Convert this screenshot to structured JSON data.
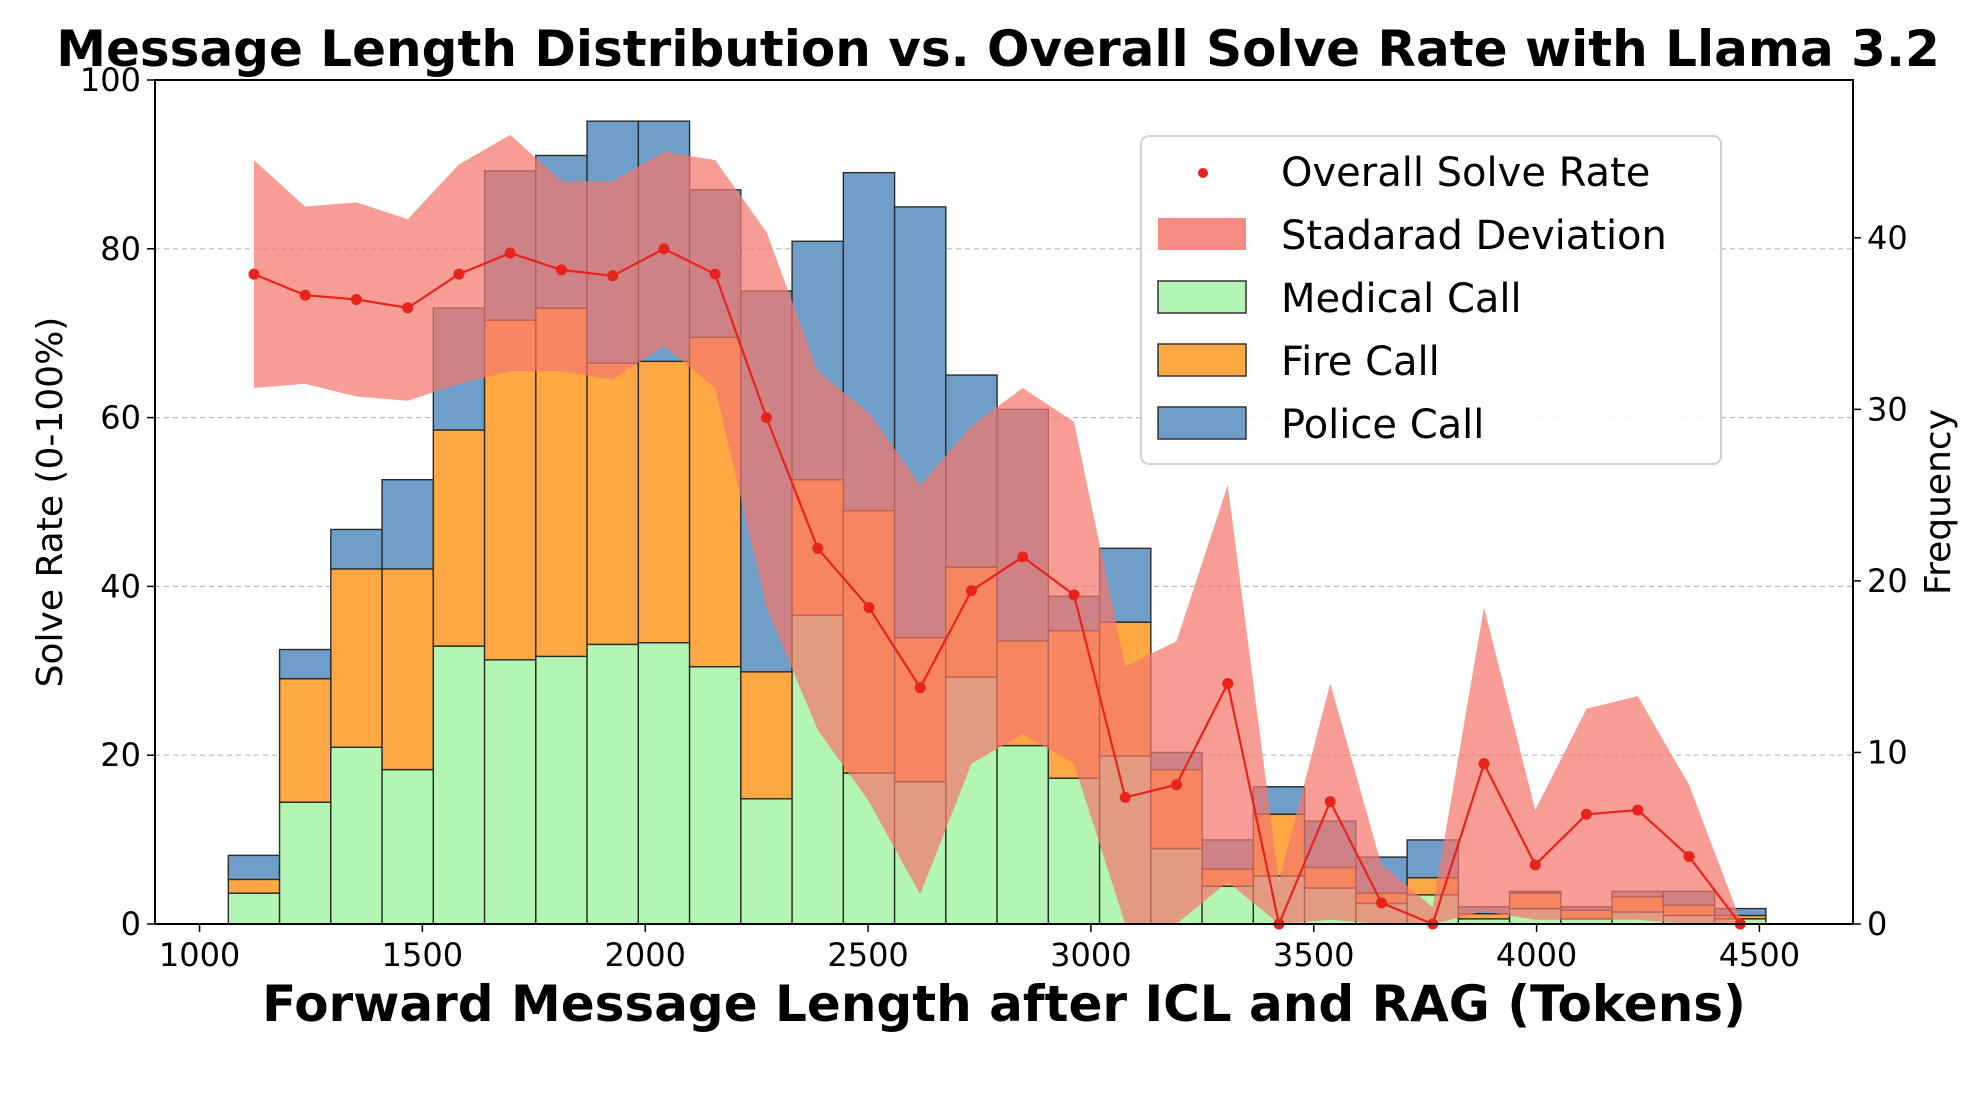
{
  "chart_data": {
    "type": "bar",
    "title": "Message Length Distribution vs. Overall Solve Rate with Llama 3.2",
    "xlabel": "Forward Message Length after ICL and RAG (Tokens)",
    "ylabel_left": "Solve Rate (0-100%)",
    "ylabel_right": "Frequency",
    "xlim": [
      900,
      4710
    ],
    "ylim_left": [
      0,
      100
    ],
    "ylim_right": [
      0,
      49.2
    ],
    "x_ticks": [
      "1000",
      "1500",
      "2000",
      "2500",
      "3000",
      "3500",
      "4000",
      "4500"
    ],
    "y_ticks_left": [
      "0",
      "20",
      "40",
      "60",
      "80",
      "100"
    ],
    "y_ticks_right": [
      "0",
      "10",
      "20",
      "30",
      "40"
    ],
    "grid": true,
    "legend_position": "top-right",
    "bar_width": 115,
    "bins": [
      {
        "center": 1122,
        "medical": 1.8,
        "fire": 0.8,
        "police": 1.4
      },
      {
        "center": 1237,
        "medical": 7.1,
        "fire": 7.2,
        "police": 1.7
      },
      {
        "center": 1352,
        "medical": 10.3,
        "fire": 10.4,
        "police": 2.3
      },
      {
        "center": 1467,
        "medical": 9.0,
        "fire": 11.7,
        "police": 5.2
      },
      {
        "center": 1582,
        "medical": 16.2,
        "fire": 12.6,
        "police": 7.1
      },
      {
        "center": 1697,
        "medical": 15.4,
        "fire": 19.8,
        "police": 8.7
      },
      {
        "center": 1812,
        "medical": 15.6,
        "fire": 20.3,
        "police": 8.9
      },
      {
        "center": 1927,
        "medical": 16.3,
        "fire": 16.4,
        "police": 14.1
      },
      {
        "center": 2042,
        "medical": 16.4,
        "fire": 16.4,
        "police": 14.0
      },
      {
        "center": 2157,
        "medical": 15.0,
        "fire": 19.2,
        "police": 8.6
      },
      {
        "center": 2272,
        "medical": 7.3,
        "fire": 7.4,
        "police": 22.2
      },
      {
        "center": 2387,
        "medical": 18.0,
        "fire": 7.9,
        "police": 13.9
      },
      {
        "center": 2502,
        "medical": 8.8,
        "fire": 15.3,
        "police": 19.7
      },
      {
        "center": 2617,
        "medical": 8.3,
        "fire": 8.4,
        "police": 25.1
      },
      {
        "center": 2732,
        "medical": 14.4,
        "fire": 6.4,
        "police": 11.2
      },
      {
        "center": 2847,
        "medical": 10.4,
        "fire": 6.1,
        "police": 13.5
      },
      {
        "center": 2962,
        "medical": 8.5,
        "fire": 8.6,
        "police": 2.0
      },
      {
        "center": 3077,
        "medical": 9.8,
        "fire": 7.8,
        "police": 4.3
      },
      {
        "center": 3192,
        "medical": 4.4,
        "fire": 4.6,
        "police": 1.0
      },
      {
        "center": 3307,
        "medical": 2.2,
        "fire": 1.0,
        "police": 1.7
      },
      {
        "center": 3422,
        "medical": 2.8,
        "fire": 3.6,
        "police": 1.6
      },
      {
        "center": 3537,
        "medical": 2.1,
        "fire": 1.2,
        "police": 2.7
      },
      {
        "center": 3652,
        "medical": 1.2,
        "fire": 0.6,
        "police": 2.1
      },
      {
        "center": 3767,
        "medical": 1.7,
        "fire": 1.0,
        "police": 2.2
      },
      {
        "center": 3882,
        "medical": 0.3,
        "fire": 0.3,
        "police": 0.4
      },
      {
        "center": 3997,
        "medical": 0.9,
        "fire": 0.9,
        "police": 0.1
      },
      {
        "center": 4112,
        "medical": 0.3,
        "fire": 0.5,
        "police": 0.2
      },
      {
        "center": 4227,
        "medical": 0.7,
        "fire": 0.9,
        "police": 0.3
      },
      {
        "center": 4342,
        "medical": 0.5,
        "fire": 0.6,
        "police": 0.8
      },
      {
        "center": 4457,
        "medical": 0.3,
        "fire": 0.2,
        "police": 0.4
      }
    ],
    "solve_rate": {
      "x": [
        1122,
        1237,
        1352,
        1467,
        1582,
        1697,
        1812,
        1927,
        2042,
        2157,
        2272,
        2387,
        2502,
        2617,
        2732,
        2847,
        2962,
        3077,
        3192,
        3307,
        3422,
        3537,
        3652,
        3767,
        3882,
        3997,
        4112,
        4227,
        4342,
        4457
      ],
      "y": [
        77.0,
        74.5,
        74.0,
        73.0,
        77.0,
        79.5,
        77.5,
        76.8,
        80.0,
        77.0,
        60.0,
        44.5,
        37.5,
        28.0,
        39.5,
        43.5,
        39.0,
        15.0,
        16.5,
        28.5,
        0.0,
        14.5,
        2.5,
        0.0,
        19.0,
        7.0,
        13.0,
        13.5,
        8.0,
        0.0
      ]
    },
    "std_band": {
      "x": [
        1122,
        1237,
        1352,
        1467,
        1582,
        1697,
        1812,
        1927,
        2042,
        2157,
        2272,
        2387,
        2502,
        2617,
        2732,
        2847,
        2962,
        3077,
        3192,
        3307,
        3422,
        3537,
        3652,
        3767,
        3882,
        3997,
        4112,
        4227,
        4342,
        4457
      ],
      "upper": [
        90.5,
        85.0,
        85.5,
        83.5,
        90.0,
        93.5,
        88.0,
        88.0,
        91.5,
        90.5,
        82.0,
        65.5,
        60.5,
        52.0,
        59.0,
        63.5,
        59.5,
        30.5,
        33.5,
        52.0,
        5.0,
        28.5,
        7.0,
        2.0,
        37.5,
        13.5,
        25.5,
        27.0,
        16.5,
        0.5
      ],
      "lower": [
        63.5,
        64.0,
        62.5,
        62.0,
        64.0,
        65.5,
        65.5,
        64.5,
        68.5,
        63.5,
        37.5,
        23.0,
        14.5,
        3.5,
        19.0,
        22.5,
        19.0,
        0.0,
        0.0,
        5.0,
        0.0,
        0.5,
        0.0,
        0.0,
        1.5,
        0.5,
        0.5,
        0.5,
        0.0,
        0.0
      ]
    },
    "series": [
      {
        "name": "Overall Solve Rate",
        "kind": "line-markers",
        "color": "#e8231b"
      },
      {
        "name": "Stadarad Deviation",
        "kind": "band",
        "color": "#f4776c"
      },
      {
        "name": "Medical Call",
        "kind": "bar",
        "color": "#b3f5b3"
      },
      {
        "name": "Fire Call",
        "kind": "bar",
        "color": "#fda843"
      },
      {
        "name": "Police Call",
        "kind": "bar",
        "color": "#6f9ec9"
      }
    ]
  }
}
